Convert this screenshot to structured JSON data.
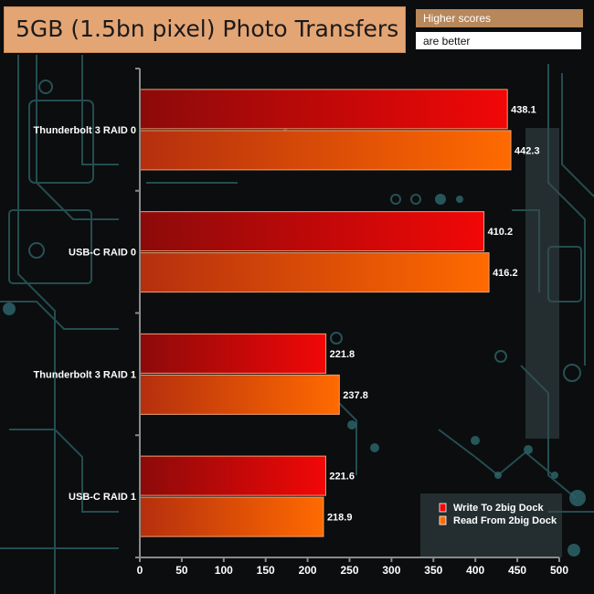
{
  "header": {
    "title": "5GB (1.5bn pixel) Photo Transfers",
    "note_line1": "Higher scores",
    "note_line2": "are better"
  },
  "colors": {
    "background": "#0b0d0e",
    "circuit": "#2d6368",
    "axis": "#8a8a8a",
    "write_dark": "#8c0a0a",
    "write_light": "#f20707",
    "read_dark": "#b52f0e",
    "read_light": "#ff6a00",
    "bar_border": "#f0a070"
  },
  "chart_data": {
    "type": "bar",
    "orientation": "horizontal",
    "categories": [
      "Thunderbolt 3 RAID 0",
      "USB-C RAID 0",
      "Thunderbolt 3 RAID 1",
      "USB-C RAID 1"
    ],
    "series": [
      {
        "name": "Write To 2big Dock",
        "values": [
          438.1,
          410.2,
          221.8,
          221.6
        ]
      },
      {
        "name": "Read From 2big Dock",
        "values": [
          442.3,
          416.2,
          237.8,
          218.9
        ]
      }
    ],
    "value_labels": [
      [
        "438.1",
        "410.2",
        "221.8",
        "221.6"
      ],
      [
        "442.3",
        "416.2",
        "237.8",
        "218.9"
      ]
    ],
    "xlim": [
      0,
      500
    ],
    "xticks": [
      0,
      50,
      100,
      150,
      200,
      250,
      300,
      350,
      400,
      450,
      500
    ],
    "xlabel": "",
    "ylabel": "",
    "grid": false,
    "legend_position": "bottom-right"
  }
}
